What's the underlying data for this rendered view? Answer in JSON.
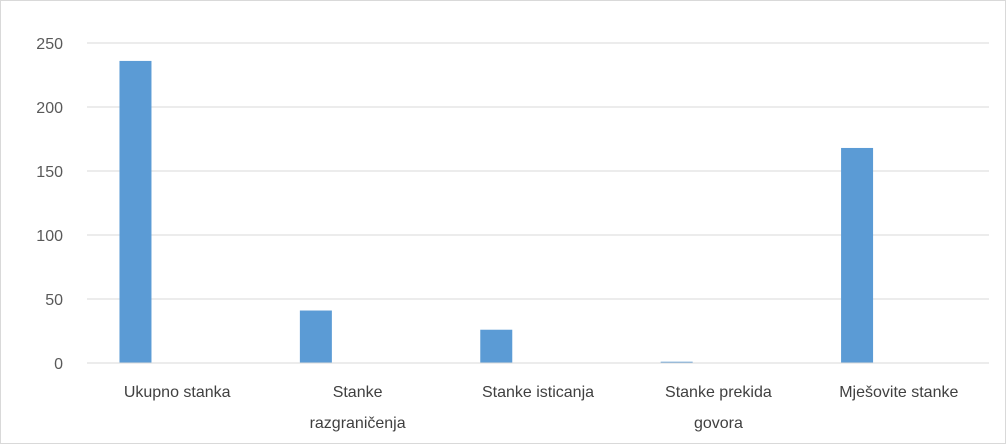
{
  "chart_data": {
    "type": "bar",
    "title": "",
    "xlabel": "",
    "ylabel": "",
    "categories": [
      [
        "Ukupno stanka"
      ],
      [
        "Stanke",
        "razgraničenja"
      ],
      [
        "Stanke isticanja"
      ],
      [
        "Stanke prekida",
        "govora"
      ],
      [
        "Mješovite stanke"
      ]
    ],
    "series": [
      {
        "values": [
          236,
          41,
          26,
          1,
          168
        ],
        "color": "#5b9bd5"
      },
      {
        "values": [
          0,
          0,
          0,
          0,
          0
        ],
        "color": "#ed7d31"
      }
    ],
    "ylim": [
      0,
      250
    ],
    "yticks": [
      0,
      50,
      100,
      150,
      200,
      250
    ],
    "grid": true,
    "legend": "none"
  }
}
